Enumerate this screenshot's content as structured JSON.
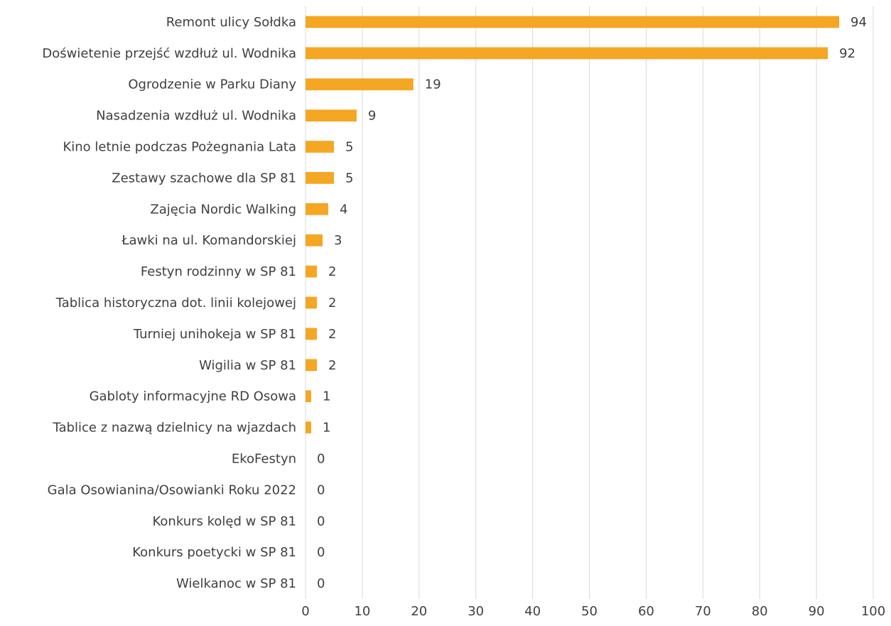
{
  "chart_data": {
    "type": "barh",
    "categories": [
      "Remont ulicy Sołdka",
      "Doświetenie przejść wzdłuż ul. Wodnika",
      "Ogrodzenie w Parku Diany",
      "Nasadzenia wzdłuż ul. Wodnika",
      "Kino letnie podczas Pożegnania Lata",
      "Zestawy szachowe dla SP 81",
      "Zajęcia Nordic Walking",
      "Ławki na ul. Komandorskiej",
      "Festyn rodzinny w SP 81",
      "Tablica historyczna dot. linii kolejowej",
      "Turniej unihokeja w SP 81",
      "Wigilia w SP 81",
      "Gabloty informacyjne RD Osowa",
      "Tablice z nazwą dzielnicy na wjazdach",
      "EkoFestyn",
      "Gala Osowianina/Osowianki Roku 2022",
      "Konkurs kolęd w SP 81",
      "Konkurs poetycki w SP 81",
      "Wielkanoc w SP 81"
    ],
    "values": [
      94,
      92,
      19,
      9,
      5,
      5,
      4,
      3,
      2,
      2,
      2,
      2,
      1,
      1,
      0,
      0,
      0,
      0,
      0
    ],
    "color": "#f5a623",
    "xlim": [
      0,
      100
    ],
    "xticks": [
      0,
      10,
      20,
      30,
      40,
      50,
      60,
      70,
      80,
      90,
      100
    ],
    "grid": true
  }
}
